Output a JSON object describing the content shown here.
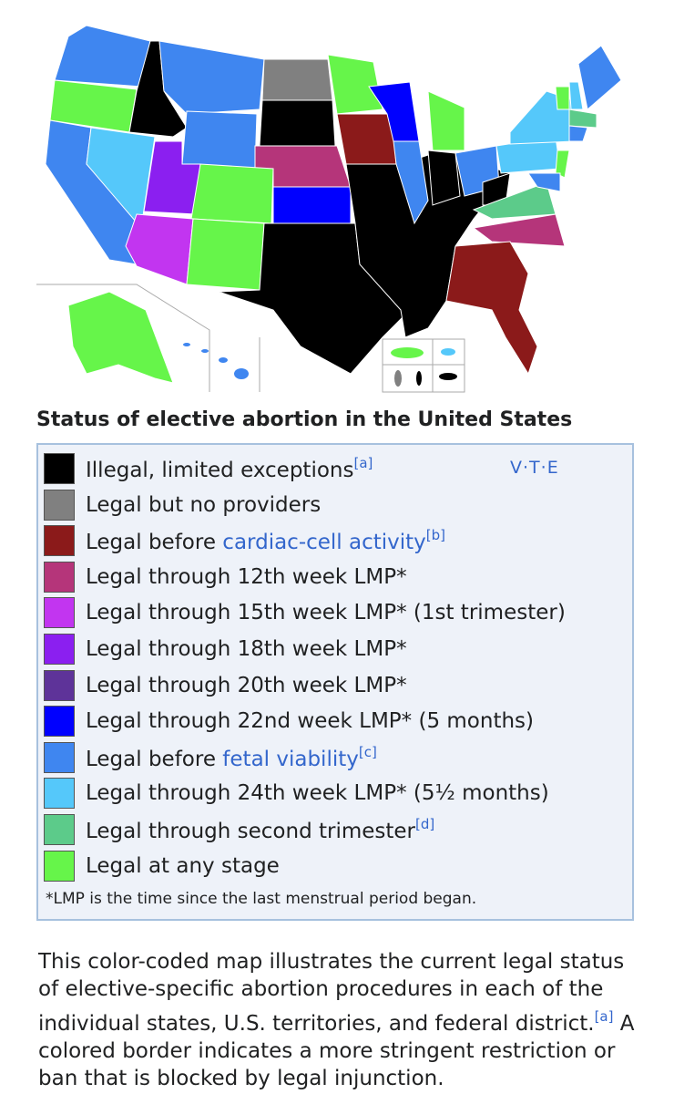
{
  "map": {
    "caption": "Status of elective abortion in the United States"
  },
  "legend": {
    "navbox": [
      "V",
      "T",
      "E"
    ],
    "items": [
      {
        "color": "#000000",
        "parts": [
          "Illegal, limited exceptions"
        ],
        "note": "[a]"
      },
      {
        "color": "#808080",
        "parts": [
          "Legal but no providers"
        ]
      },
      {
        "color": "#8b1a1a",
        "parts": [
          "Legal before "
        ],
        "link": "cardiac-cell activity",
        "note": "[b]"
      },
      {
        "color": "#b5357a",
        "parts": [
          "Legal through 12th week LMP*"
        ]
      },
      {
        "color": "#c235f0",
        "parts": [
          "Legal through 15th week LMP* (1st trimester)"
        ]
      },
      {
        "color": "#8b1ff0",
        "parts": [
          "Legal through 18th week LMP*"
        ]
      },
      {
        "color": "#5e3399",
        "parts": [
          "Legal through 20th week LMP*"
        ]
      },
      {
        "color": "#0000ff",
        "parts": [
          "Legal through 22nd week LMP* (5 months)"
        ]
      },
      {
        "color": "#3f86f0",
        "parts": [
          "Legal before "
        ],
        "link": "fetal viability",
        "note": "[c]"
      },
      {
        "color": "#55c8fa",
        "parts": [
          "Legal through 24th week LMP* (5½ months)"
        ]
      },
      {
        "color": "#5ccb8a",
        "parts": [
          "Legal through second trimester"
        ],
        "note": "[d]"
      },
      {
        "color": "#66f54a",
        "parts": [
          "Legal at any stage"
        ]
      }
    ],
    "footnote": "*LMP is the time since the last menstrual period began."
  },
  "description": {
    "text": "This color-coded map illustrates the current legal status of elective-specific abortion procedures in each of the individual states, U.S. territories, and federal district.",
    "note": "[a]",
    "text2": " A colored border indicates a more stringent restriction or ban that is blocked by legal injunction."
  }
}
